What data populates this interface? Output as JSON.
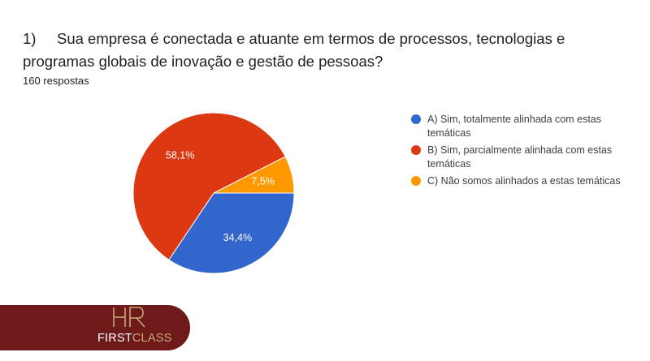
{
  "question": {
    "number": "1)",
    "text": "Sua empresa é conectada e atuante em termos de processos, tecnologias e programas globais de inovação e gestão de pessoas?"
  },
  "responses_label": "160 respostas",
  "chart_data": {
    "type": "pie",
    "slices": [
      {
        "label": "A) Sim, totalmente alinhada com estas temáticas",
        "value": 34.4,
        "value_label": "34,4%",
        "color": "#3366cc"
      },
      {
        "label": "B) Sim, parcialmente alinhada com estas temáticas",
        "value": 58.1,
        "value_label": "58,1%",
        "color": "#dc3912"
      },
      {
        "label": "C) Não somos alinhados a estas temáticas",
        "value": 7.5,
        "value_label": "7,5%",
        "color": "#ff9900"
      }
    ],
    "legend_position": "right"
  },
  "brand": {
    "logo_letters": "HR",
    "first": "FIRST",
    "class": "CLASS",
    "color": "#6e1a1a",
    "accent": "#c9a978"
  }
}
